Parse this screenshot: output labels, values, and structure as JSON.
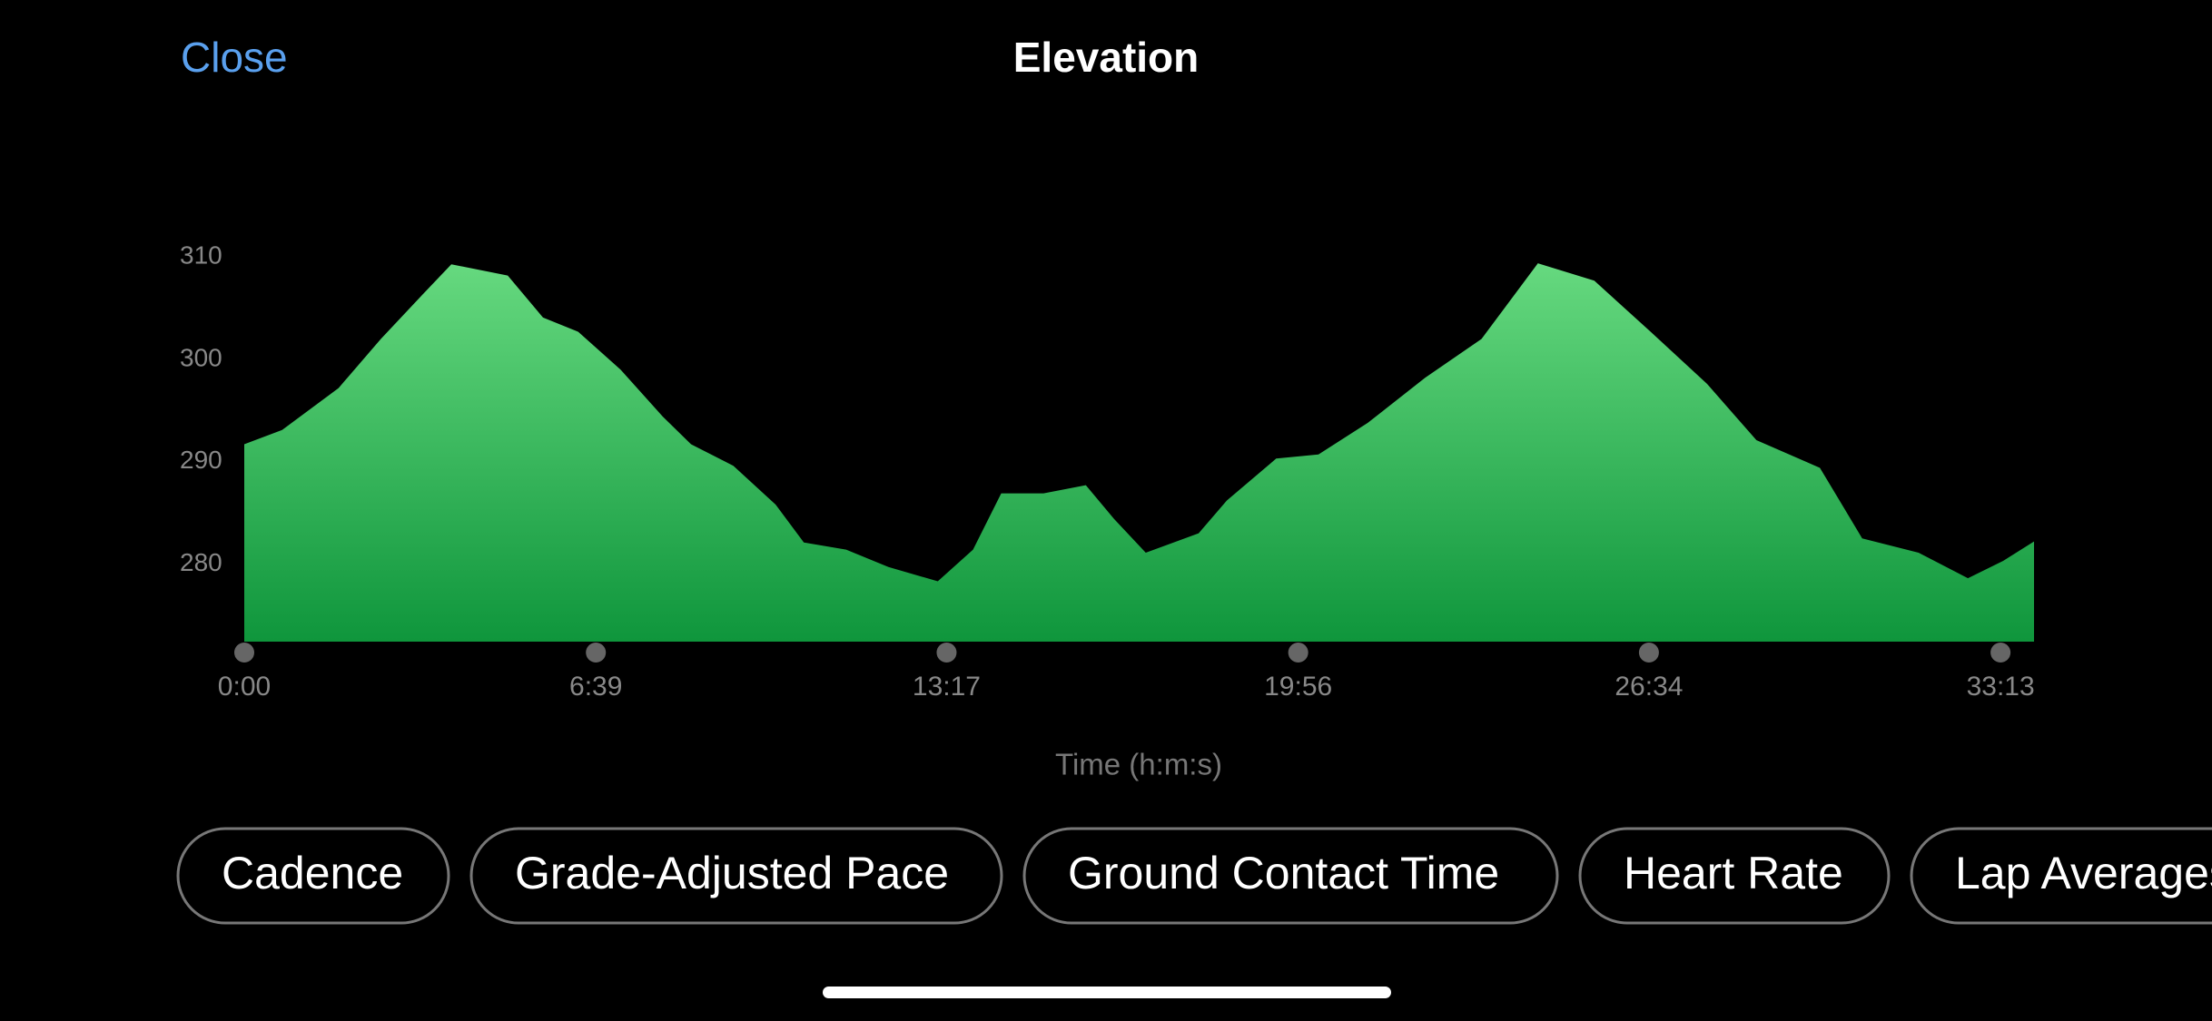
{
  "header": {
    "close": "Close",
    "title": "Elevation"
  },
  "chart_data": {
    "type": "area",
    "color": "#1aa34a",
    "x_label": "Time (h:m:s)",
    "x": [
      0,
      43,
      107,
      155,
      203,
      235,
      299,
      339,
      379,
      427,
      475,
      507,
      555,
      603,
      635,
      683,
      731,
      787,
      827,
      859,
      907,
      955,
      987,
      1023,
      1083,
      1115,
      1171,
      1219,
      1275,
      1340,
      1404,
      1468,
      1532,
      1596,
      1660,
      1716,
      1788,
      1836,
      1900,
      1956,
      1996,
      2031
    ],
    "values": [
      291.7,
      293.1,
      297.2,
      302,
      306.4,
      309.3,
      308.2,
      304.1,
      302.7,
      299,
      294.4,
      291.7,
      289.6,
      285.8,
      282.1,
      281.4,
      279.7,
      278.3,
      281.4,
      286.9,
      286.9,
      287.7,
      284.4,
      281.1,
      283,
      286.2,
      290.3,
      290.7,
      293.8,
      298.2,
      302,
      309.4,
      307.7,
      302.7,
      297.6,
      292.1,
      289.4,
      282.5,
      281.1,
      278.6,
      280.3,
      282.2
    ],
    "xlim": [
      0,
      2031
    ],
    "xticks": [
      {
        "value": 0,
        "label": "0:00"
      },
      {
        "value": 399,
        "label": "6:39"
      },
      {
        "value": 797,
        "label": "13:17"
      },
      {
        "value": 1196,
        "label": "19:56"
      },
      {
        "value": 1594,
        "label": "26:34"
      },
      {
        "value": 1993,
        "label": "33:13"
      }
    ],
    "ylim": [
      272.4,
      315
    ],
    "yticks": [
      280,
      290,
      300,
      310
    ]
  },
  "chips": [
    "Cadence",
    "Grade-Adjusted Pace",
    "Ground Contact Time",
    "Heart Rate",
    "Lap Averages"
  ]
}
